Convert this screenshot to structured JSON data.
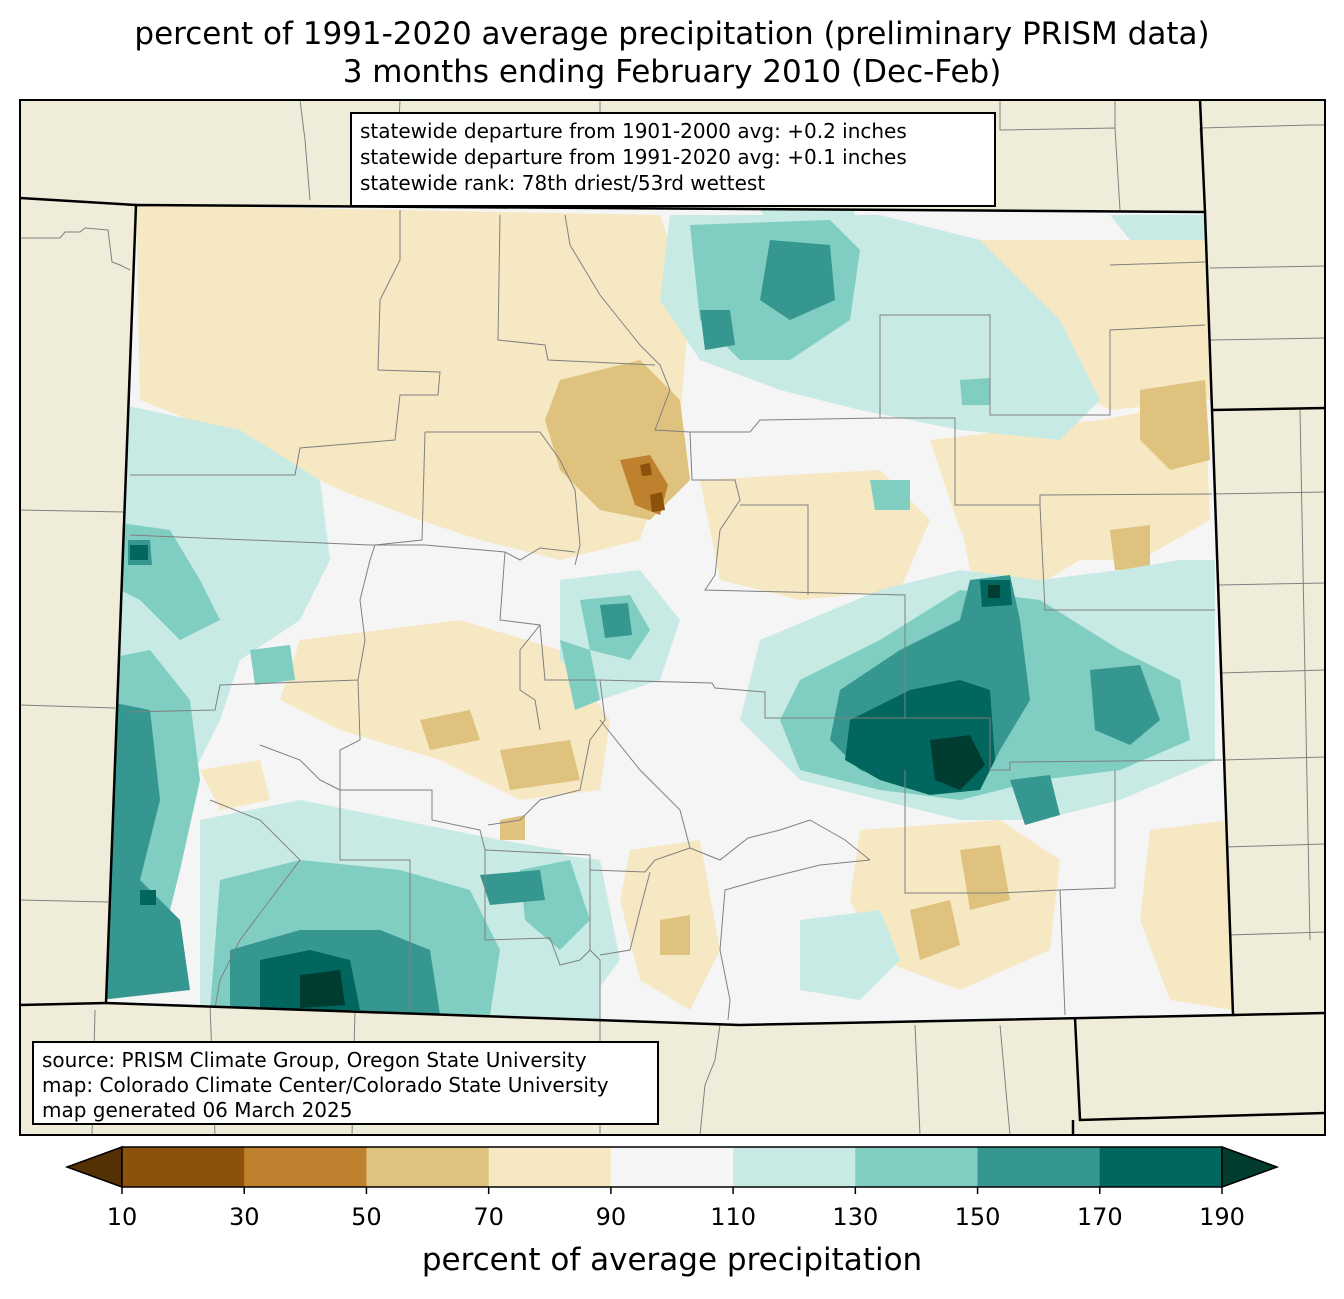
{
  "title_line1": "percent of 1991-2020 average precipitation (preliminary PRISM data)",
  "title_line2": "3 months ending February 2010 (Dec-Feb)",
  "stats": {
    "line1": "statewide departure from 1901-2000 avg: +0.2 inches",
    "line2": "statewide departure from 1991-2020 avg: +0.1 inches",
    "line3": "statewide rank: 78th driest/53rd wettest"
  },
  "credits": {
    "line1": "source: PRISM Climate Group, Oregon State University",
    "line2": "map: Colorado Climate Center/Colorado State University",
    "line3": "map generated 06 March 2025"
  },
  "colorbar": {
    "label": "percent of average precipitation",
    "ticks": [
      "10",
      "30",
      "50",
      "70",
      "90",
      "110",
      "130",
      "150",
      "170",
      "190"
    ],
    "bins": [
      {
        "range": "<10",
        "color": "#543005"
      },
      {
        "range": "10-30",
        "color": "#8c510a"
      },
      {
        "range": "30-50",
        "color": "#bf812d"
      },
      {
        "range": "50-70",
        "color": "#dfc27d"
      },
      {
        "range": "70-90",
        "color": "#f6e8c3"
      },
      {
        "range": "90-110",
        "color": "#f5f5f5"
      },
      {
        "range": "110-130",
        "color": "#c7eae5"
      },
      {
        "range": "130-150",
        "color": "#80cdc1"
      },
      {
        "range": "150-170",
        "color": "#35978f"
      },
      {
        "range": "170-190",
        "color": "#01665e"
      },
      {
        "range": ">190",
        "color": "#003c30"
      }
    ]
  },
  "colors": {
    "land_background": "#efedda",
    "county_lines": "#808080",
    "state_lines": "#000000"
  }
}
